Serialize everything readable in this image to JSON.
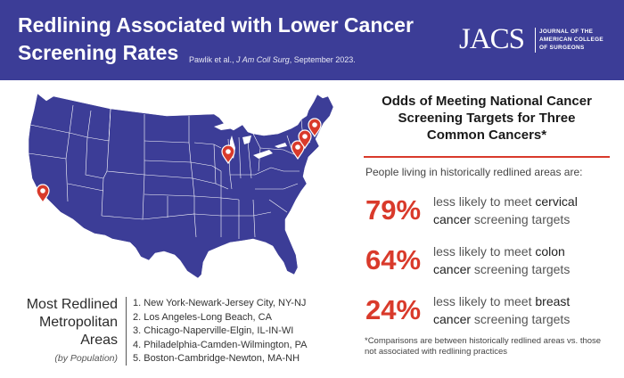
{
  "header": {
    "title_line1": "Redlining Associated with Lower Cancer",
    "title_line2": "Screening Rates",
    "citation_authors": "Pawlik et al., ",
    "citation_journal": "J Am Coll Surg",
    "citation_date": ", September 2023.",
    "logo_mark": "JACS",
    "logo_text_1": "Journal of the",
    "logo_text_2": "American College",
    "logo_text_3": "of Surgeons"
  },
  "colors": {
    "header_bg": "#3c3d97",
    "map_fill": "#3c3d97",
    "accent_red": "#d93a2b",
    "state_lines": "#ffffff"
  },
  "map": {
    "icon": "map-pin-icon",
    "pins_count": 5
  },
  "legend": {
    "title_line1": "Most Redlined",
    "title_line2": "Metropolitan",
    "title_line3": "Areas",
    "subtitle": "(by Population)",
    "items": [
      "1. New York-Newark-Jersey City, NY-NJ",
      "2. Los Angeles-Long Beach, CA",
      "3. Chicago-Naperville-Elgin, IL-IN-WI",
      "4. Philadelphia-Camden-Wilmington, PA",
      "5. Boston-Cambridge-Newton, MA-NH"
    ]
  },
  "odds": {
    "title_line1": "Odds of Meeting National Cancer",
    "title_line2": "Screening Targets for Three",
    "title_line3": "Common Cancers*",
    "intro": "People living in historically redlined areas are:",
    "stats": [
      {
        "pct": "79%",
        "pre": "less likely to meet ",
        "cancer": "cervical",
        "cancer_word": "cancer",
        "post": " screening targets"
      },
      {
        "pct": "64%",
        "pre": "less likely to meet ",
        "cancer": "colon",
        "cancer_word": "cancer",
        "post": " screening targets"
      },
      {
        "pct": "24%",
        "pre": "less likely to meet ",
        "cancer": "breast",
        "cancer_word": "cancer",
        "post": " screening targets"
      }
    ],
    "footnote": "*Comparisons are between historically redlined areas vs. those not associated with redlining practices"
  }
}
